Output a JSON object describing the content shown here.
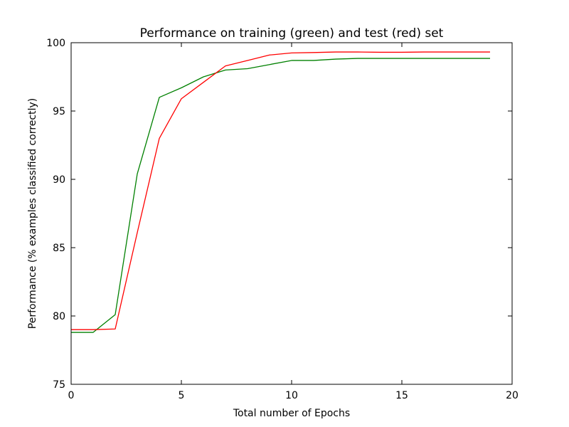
{
  "chart_data": {
    "type": "line",
    "title": "Performance on training (green) and test (red) set",
    "xlabel": "Total number of Epochs",
    "ylabel": "Performance (% examples classified correctly)",
    "xlim": [
      0,
      20
    ],
    "ylim": [
      75,
      100
    ],
    "xticks": [
      0,
      5,
      10,
      15,
      20
    ],
    "yticks": [
      75,
      80,
      85,
      90,
      95,
      100
    ],
    "grid": false,
    "series": [
      {
        "color": "#008000",
        "x": [
          0,
          1,
          2,
          3,
          4,
          5,
          6,
          7,
          8,
          9,
          10,
          11,
          12,
          13,
          14,
          15,
          16,
          17,
          18,
          19
        ],
        "values": [
          78.8,
          78.8,
          80.1,
          90.4,
          96.0,
          96.7,
          97.5,
          98.0,
          98.1,
          98.4,
          98.7,
          98.7,
          98.8,
          98.85,
          98.85,
          98.85,
          98.85,
          98.85,
          98.85,
          98.85
        ]
      },
      {
        "color": "#ff0000",
        "x": [
          0,
          1,
          2,
          3,
          4,
          5,
          6,
          7,
          8,
          9,
          10,
          11,
          12,
          13,
          14,
          15,
          16,
          17,
          18,
          19
        ],
        "values": [
          79.0,
          79.0,
          79.05,
          86.1,
          93.0,
          95.9,
          97.1,
          98.3,
          98.7,
          99.1,
          99.25,
          99.28,
          99.32,
          99.32,
          99.3,
          99.3,
          99.32,
          99.32,
          99.32,
          99.32
        ]
      }
    ]
  }
}
